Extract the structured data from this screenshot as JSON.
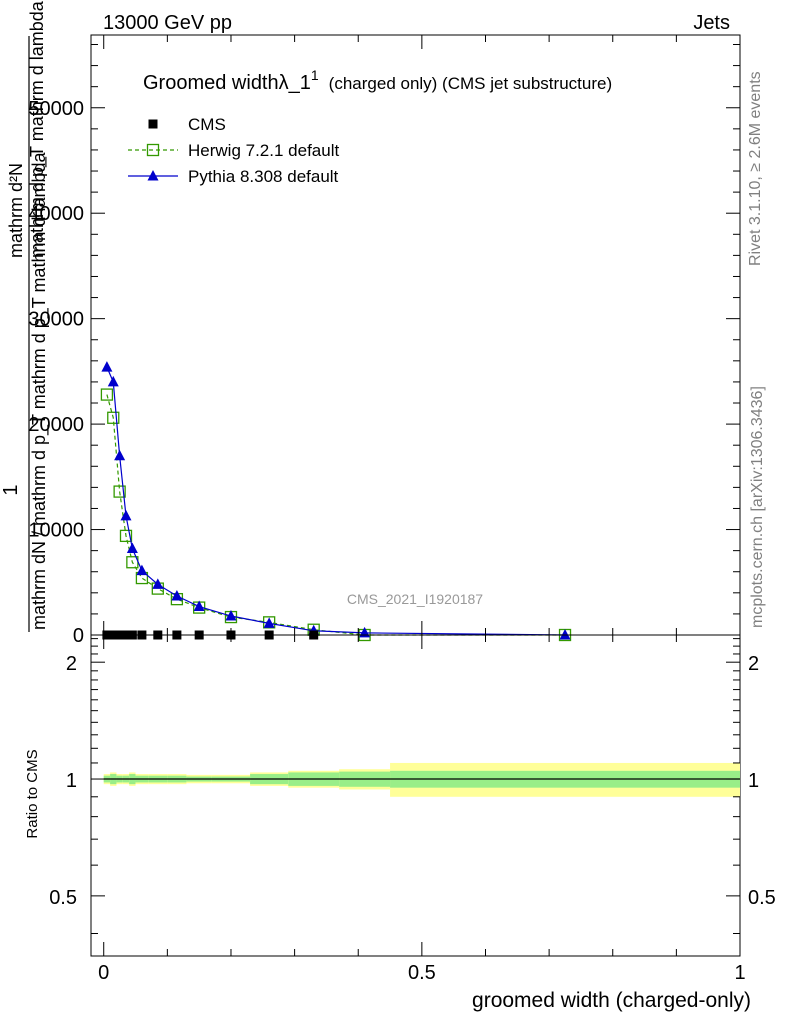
{
  "header": {
    "left_label": "13000 GeV pp",
    "right_label": "Jets"
  },
  "side_labels": {
    "rivet": "Rivet 3.1.10, ≥ 2.6M events",
    "mcplots": "mcplots.cern.ch [arXiv:1306.3436]"
  },
  "watermark": "CMS_2021_I1920187",
  "title": {
    "main": "Groomed widthλ_1",
    "superscript": "1",
    "suffix": "(charged only) (CMS jet substructure)"
  },
  "axes": {
    "ylabel_top": {
      "numerator": "1",
      "denominator": "mathrm dN / mathrm d p_T mathrm d p_T mathrm d lambda",
      "numerator_overlay": "mathrm d²N",
      "denominator_overlay": "mathrm d p_T mathrm d lambda"
    },
    "ylabel_ratio": "Ratio to CMS",
    "xlabel": "groomed width (charged-only)",
    "x_ticks": [
      {
        "value": 0,
        "label": "0"
      },
      {
        "value": 0.5,
        "label": "0.5"
      },
      {
        "value": 1,
        "label": "1"
      }
    ],
    "y_ticks_top": [
      {
        "value": 0,
        "label": "0"
      },
      {
        "value": 10000,
        "label": "10000"
      },
      {
        "value": 20000,
        "label": "20000"
      },
      {
        "value": 30000,
        "label": "30000"
      },
      {
        "value": 40000,
        "label": "40000"
      },
      {
        "value": 50000,
        "label": "50000"
      }
    ],
    "y_ticks_ratio": [
      {
        "value": 0.5,
        "label": "0.5"
      },
      {
        "value": 1,
        "label": "1"
      },
      {
        "value": 2,
        "label": "2"
      }
    ]
  },
  "legend": [
    {
      "name": "CMS",
      "color": "#000000",
      "marker": "filled-square",
      "line": "none"
    },
    {
      "name": "Herwig 7.2.1 default",
      "color": "#339900",
      "marker": "open-square",
      "line": "dashed"
    },
    {
      "name": "Pythia 8.308 default",
      "color": "#0000cc",
      "marker": "filled-triangle",
      "line": "solid"
    }
  ],
  "chart_data": {
    "type": "line",
    "xlim": [
      -0.02,
      1.0
    ],
    "ylim": [
      0,
      56900
    ],
    "ratio_ylim": [
      0.35,
      2.35
    ],
    "ratio_scale": "log",
    "grid": false,
    "legend_position": "top-left",
    "bin_edges": [
      0,
      0.01,
      0.02,
      0.03,
      0.04,
      0.05,
      0.07,
      0.1,
      0.13,
      0.17,
      0.23,
      0.29,
      0.37,
      0.45,
      1.0
    ],
    "x": [
      0.005,
      0.015,
      0.025,
      0.035,
      0.045,
      0.06,
      0.085,
      0.115,
      0.15,
      0.2,
      0.26,
      0.33,
      0.41,
      0.725
    ],
    "series": [
      {
        "name": "CMS",
        "values": [
          0,
          0,
          0,
          0,
          0,
          0,
          0,
          0,
          0,
          0,
          0,
          0,
          0,
          0
        ]
      },
      {
        "name": "Herwig 7.2.1 default",
        "values": [
          22800,
          20600,
          13600,
          9400,
          6900,
          5400,
          4400,
          3400,
          2600,
          1700,
          1200,
          500,
          0,
          0
        ]
      },
      {
        "name": "Pythia 8.308 default",
        "values": [
          25400,
          24000,
          17000,
          11300,
          8200,
          6100,
          4800,
          3700,
          2700,
          1800,
          1100,
          400,
          200,
          0
        ]
      }
    ],
    "ratio_band": {
      "name": "CMS",
      "inner_lo": [
        0.98,
        0.97,
        0.98,
        0.98,
        0.97,
        0.98,
        0.98,
        0.98,
        0.985,
        0.985,
        0.97,
        0.96,
        0.955,
        0.95
      ],
      "inner_hi": [
        1.02,
        1.03,
        1.02,
        1.02,
        1.03,
        1.02,
        1.02,
        1.02,
        1.015,
        1.015,
        1.03,
        1.04,
        1.045,
        1.05
      ],
      "outer_lo": [
        0.97,
        0.96,
        0.97,
        0.97,
        0.96,
        0.97,
        0.97,
        0.97,
        0.975,
        0.975,
        0.96,
        0.95,
        0.94,
        0.9
      ],
      "outer_hi": [
        1.03,
        1.04,
        1.03,
        1.03,
        1.04,
        1.03,
        1.03,
        1.03,
        1.025,
        1.025,
        1.04,
        1.05,
        1.06,
        1.1
      ]
    }
  }
}
